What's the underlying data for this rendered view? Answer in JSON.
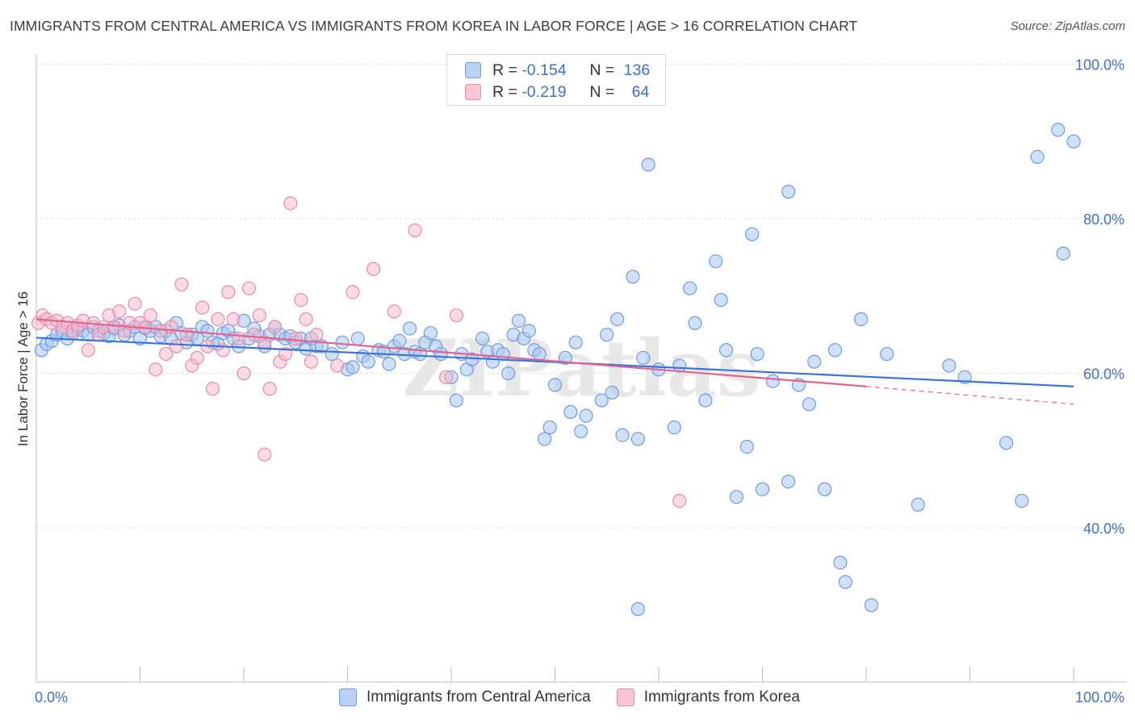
{
  "title": "IMMIGRANTS FROM CENTRAL AMERICA VS IMMIGRANTS FROM KOREA IN LABOR FORCE | AGE > 16 CORRELATION CHART",
  "source": "Source: ZipAtlas.com",
  "watermark": "ZIPatlas",
  "legend": {
    "rows": [
      {
        "r_label": "R = ",
        "r_value": "-0.154",
        "n_label": "N = ",
        "n_value": "136"
      },
      {
        "r_label": "R = ",
        "r_value": "-0.219",
        "n_label": "N = ",
        "n_value": "64"
      }
    ]
  },
  "bottom_legend": [
    "Immigrants from Central America",
    "Immigrants from Korea"
  ],
  "colors": {
    "blue_fill": "#a9c8f0",
    "blue_stroke": "#6f9be0",
    "blue_line": "#3a74d8",
    "pink_fill": "#f6b8cb",
    "pink_stroke": "#ec8aa8",
    "pink_line": "#e0648f",
    "axis_label": "#3f6fcf",
    "grid": "#dddddd"
  },
  "chart_data": {
    "type": "scatter",
    "title": "IMMIGRANTS FROM CENTRAL AMERICA VS IMMIGRANTS FROM KOREA IN LABOR FORCE | AGE > 16 CORRELATION CHART",
    "xlabel": "",
    "ylabel": "In Labor Force | Age > 16",
    "xlim": [
      0,
      100
    ],
    "ylim": [
      20,
      102
    ],
    "x_tick_labels": [
      "0.0%",
      "100.0%"
    ],
    "y_ticks": [
      40,
      60,
      80,
      100
    ],
    "y_tick_labels": [
      "40.0%",
      "60.0%",
      "80.0%",
      "100.0%"
    ],
    "grid": true,
    "legend_position": "top-center",
    "series": [
      {
        "name": "Immigrants from Central America",
        "r": -0.154,
        "n": 136,
        "trend": {
          "x": [
            0,
            100
          ],
          "y": [
            64.6,
            58.3
          ]
        },
        "points": [
          [
            0.5,
            63.0
          ],
          [
            1.0,
            63.8
          ],
          [
            1.5,
            64.2
          ],
          [
            2.0,
            65.0
          ],
          [
            2.5,
            65.5
          ],
          [
            3.0,
            64.5
          ],
          [
            3.5,
            65.2
          ],
          [
            4.0,
            65.8
          ],
          [
            4.5,
            65.5
          ],
          [
            5.0,
            65.0
          ],
          [
            5.5,
            66.0
          ],
          [
            6.0,
            65.5
          ],
          [
            6.5,
            65.2
          ],
          [
            7.0,
            64.8
          ],
          [
            7.5,
            65.8
          ],
          [
            8.0,
            66.2
          ],
          [
            8.5,
            65.0
          ],
          [
            9.0,
            65.5
          ],
          [
            9.5,
            66.0
          ],
          [
            10.0,
            64.5
          ],
          [
            10.5,
            65.8
          ],
          [
            11.0,
            65.5
          ],
          [
            11.5,
            66.0
          ],
          [
            12.0,
            64.8
          ],
          [
            12.5,
            65.5
          ],
          [
            13.0,
            64.5
          ],
          [
            13.5,
            66.5
          ],
          [
            14.0,
            65.2
          ],
          [
            14.5,
            64.0
          ],
          [
            15.0,
            65.0
          ],
          [
            15.5,
            64.5
          ],
          [
            16.0,
            66.0
          ],
          [
            16.5,
            65.5
          ],
          [
            17.0,
            64.0
          ],
          [
            17.5,
            63.8
          ],
          [
            18.0,
            65.2
          ],
          [
            18.5,
            65.5
          ],
          [
            19.0,
            64.5
          ],
          [
            19.5,
            63.5
          ],
          [
            20.0,
            66.8
          ],
          [
            20.5,
            64.5
          ],
          [
            21.0,
            65.8
          ],
          [
            21.5,
            64.8
          ],
          [
            22.0,
            63.5
          ],
          [
            22.5,
            65.0
          ],
          [
            23.0,
            66.0
          ],
          [
            23.5,
            65.0
          ],
          [
            24.0,
            64.5
          ],
          [
            24.5,
            64.8
          ],
          [
            25.0,
            64.0
          ],
          [
            25.5,
            64.5
          ],
          [
            26.0,
            63.2
          ],
          [
            26.5,
            64.5
          ],
          [
            27.0,
            63.5
          ],
          [
            27.5,
            63.5
          ],
          [
            28.5,
            62.5
          ],
          [
            29.5,
            64.0
          ],
          [
            30.0,
            60.5
          ],
          [
            30.5,
            60.8
          ],
          [
            31.0,
            64.5
          ],
          [
            31.5,
            62.2
          ],
          [
            32.0,
            61.5
          ],
          [
            33.0,
            63.0
          ],
          [
            33.5,
            62.8
          ],
          [
            34.0,
            61.2
          ],
          [
            34.5,
            63.5
          ],
          [
            35.0,
            64.2
          ],
          [
            35.5,
            62.5
          ],
          [
            36.0,
            65.8
          ],
          [
            36.5,
            62.8
          ],
          [
            37.0,
            62.5
          ],
          [
            37.5,
            64.0
          ],
          [
            38.0,
            65.2
          ],
          [
            38.5,
            63.5
          ],
          [
            39.0,
            62.5
          ],
          [
            40.0,
            59.5
          ],
          [
            40.5,
            56.5
          ],
          [
            41.0,
            62.5
          ],
          [
            41.5,
            60.5
          ],
          [
            42.0,
            61.8
          ],
          [
            43.0,
            64.5
          ],
          [
            43.5,
            62.8
          ],
          [
            44.0,
            61.5
          ],
          [
            44.5,
            63.0
          ],
          [
            45.0,
            62.5
          ],
          [
            45.5,
            60.0
          ],
          [
            46.0,
            65.0
          ],
          [
            46.5,
            66.8
          ],
          [
            47.0,
            64.5
          ],
          [
            47.5,
            65.5
          ],
          [
            48.0,
            63.0
          ],
          [
            48.5,
            62.5
          ],
          [
            49.0,
            51.5
          ],
          [
            49.5,
            53.0
          ],
          [
            50.0,
            58.5
          ],
          [
            51.0,
            62.0
          ],
          [
            51.5,
            55.0
          ],
          [
            52.0,
            64.0
          ],
          [
            52.5,
            52.5
          ],
          [
            53.0,
            54.5
          ],
          [
            54.5,
            56.5
          ],
          [
            55.0,
            65.0
          ],
          [
            55.5,
            57.5
          ],
          [
            56.0,
            67.0
          ],
          [
            56.5,
            52.0
          ],
          [
            57.5,
            72.5
          ],
          [
            58.0,
            51.5
          ],
          [
            58.5,
            62.0
          ],
          [
            59.0,
            87.0
          ],
          [
            60.0,
            60.5
          ],
          [
            61.5,
            53.0
          ],
          [
            62.0,
            61.0
          ],
          [
            63.0,
            71.0
          ],
          [
            63.5,
            66.5
          ],
          [
            64.5,
            56.5
          ],
          [
            65.5,
            74.5
          ],
          [
            66.0,
            69.5
          ],
          [
            66.5,
            63.0
          ],
          [
            67.5,
            44.0
          ],
          [
            68.5,
            50.5
          ],
          [
            69.0,
            78.0
          ],
          [
            69.5,
            62.5
          ],
          [
            70.0,
            45.0
          ],
          [
            71.0,
            59.0
          ],
          [
            72.5,
            83.5
          ],
          [
            72.5,
            46.0
          ],
          [
            73.5,
            58.5
          ],
          [
            74.5,
            56.0
          ],
          [
            75.0,
            61.5
          ],
          [
            76.0,
            45.0
          ],
          [
            77.0,
            63.0
          ],
          [
            77.5,
            35.5
          ],
          [
            78.0,
            33.0
          ],
          [
            79.5,
            67.0
          ],
          [
            80.5,
            30.0
          ],
          [
            82.0,
            62.5
          ],
          [
            85.0,
            43.0
          ],
          [
            88.0,
            61.0
          ],
          [
            89.5,
            59.5
          ],
          [
            93.5,
            51.0
          ],
          [
            95.0,
            43.5
          ],
          [
            96.5,
            88.0
          ],
          [
            98.5,
            91.5
          ],
          [
            99.0,
            75.5
          ],
          [
            100.0,
            90.0
          ],
          [
            58.0,
            29.5
          ]
        ]
      },
      {
        "name": "Immigrants from Korea",
        "r": -0.219,
        "n": 64,
        "trend": {
          "x": [
            0,
            80
          ],
          "y": [
            67.0,
            58.3
          ]
        },
        "trend_dashed": {
          "x": [
            80,
            100
          ],
          "y": [
            58.3,
            56.0
          ]
        },
        "points": [
          [
            0.2,
            66.5
          ],
          [
            0.6,
            67.5
          ],
          [
            1.0,
            67.0
          ],
          [
            1.5,
            66.5
          ],
          [
            2.0,
            66.8
          ],
          [
            2.5,
            66.0
          ],
          [
            3.0,
            66.5
          ],
          [
            3.5,
            65.5
          ],
          [
            4.0,
            66.2
          ],
          [
            4.5,
            66.8
          ],
          [
            5.0,
            63.0
          ],
          [
            5.5,
            66.5
          ],
          [
            6.0,
            65.0
          ],
          [
            6.5,
            66.0
          ],
          [
            7.0,
            67.5
          ],
          [
            7.5,
            66.0
          ],
          [
            8.0,
            68.0
          ],
          [
            8.5,
            65.5
          ],
          [
            9.0,
            66.5
          ],
          [
            9.5,
            69.0
          ],
          [
            10.0,
            66.5
          ],
          [
            10.5,
            66.0
          ],
          [
            11.0,
            67.5
          ],
          [
            11.5,
            60.5
          ],
          [
            12.0,
            65.5
          ],
          [
            12.5,
            62.5
          ],
          [
            13.0,
            66.0
          ],
          [
            13.5,
            63.5
          ],
          [
            14.0,
            71.5
          ],
          [
            14.5,
            65.0
          ],
          [
            15.0,
            61.0
          ],
          [
            15.5,
            62.0
          ],
          [
            16.0,
            68.5
          ],
          [
            16.5,
            63.5
          ],
          [
            17.0,
            58.0
          ],
          [
            17.5,
            67.0
          ],
          [
            18.0,
            63.0
          ],
          [
            18.5,
            70.5
          ],
          [
            19.0,
            67.0
          ],
          [
            19.5,
            64.5
          ],
          [
            20.0,
            60.0
          ],
          [
            20.5,
            71.0
          ],
          [
            21.0,
            65.0
          ],
          [
            21.5,
            67.5
          ],
          [
            22.0,
            64.0
          ],
          [
            22.5,
            58.0
          ],
          [
            23.0,
            66.0
          ],
          [
            23.5,
            61.5
          ],
          [
            24.0,
            62.5
          ],
          [
            24.5,
            82.0
          ],
          [
            25.0,
            64.5
          ],
          [
            25.5,
            69.5
          ],
          [
            26.0,
            67.0
          ],
          [
            26.5,
            61.5
          ],
          [
            27.0,
            65.0
          ],
          [
            29.0,
            61.0
          ],
          [
            30.5,
            70.5
          ],
          [
            32.5,
            73.5
          ],
          [
            34.5,
            68.0
          ],
          [
            36.5,
            78.5
          ],
          [
            39.5,
            59.5
          ],
          [
            40.5,
            67.5
          ],
          [
            62.0,
            43.5
          ],
          [
            22.0,
            49.5
          ]
        ]
      }
    ]
  }
}
